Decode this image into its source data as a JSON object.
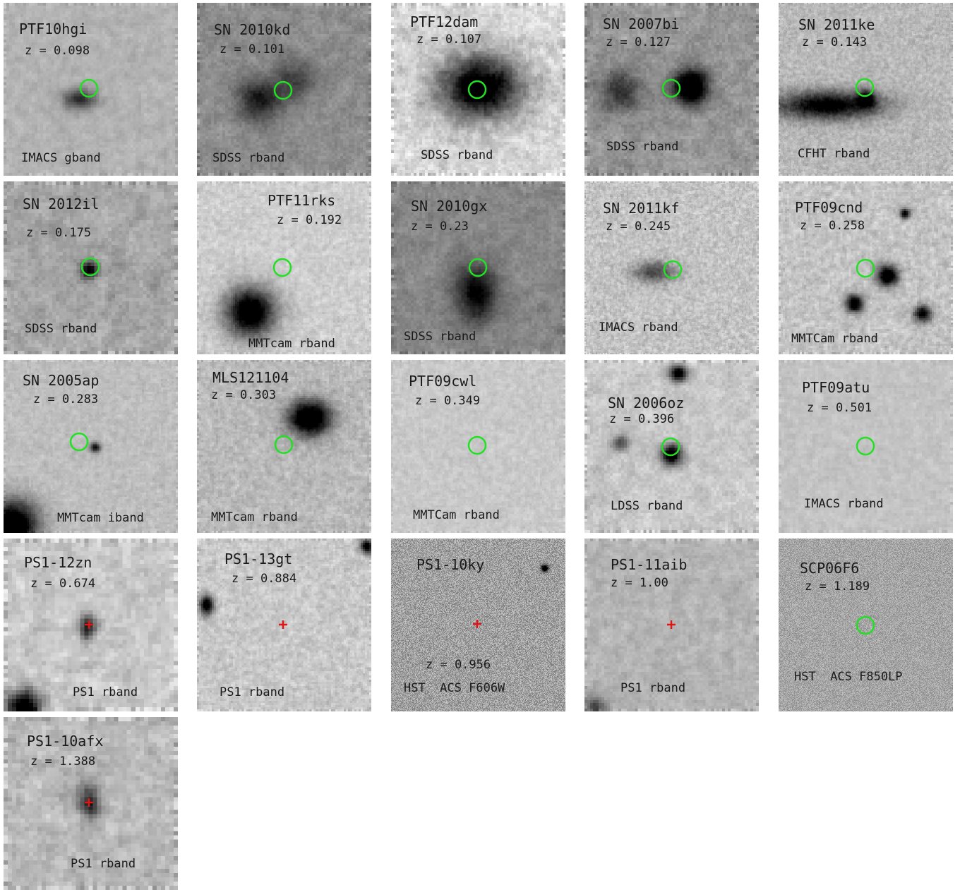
{
  "colors": {
    "circle": "#22e022",
    "cross": "#e01515"
  },
  "panels": [
    {
      "name": "PTF10hgi",
      "z": "z = 0.098",
      "band": "IMACS gband",
      "marker": "circle",
      "seed": 11,
      "bg": 178,
      "noise": 22,
      "blur": 2
    },
    {
      "name": "SN 2010kd",
      "z": "z = 0.101",
      "band": "SDSS rband",
      "marker": "circle",
      "seed": 12,
      "bg": 140,
      "noise": 38,
      "blur": 6
    },
    {
      "name": "PTF12dam",
      "z": "z = 0.107",
      "band": "SDSS rband",
      "marker": "circle",
      "seed": 13,
      "bg": 215,
      "noise": 50,
      "blur": 3
    },
    {
      "name": "SN 2007bi",
      "z": "z = 0.127",
      "band": "SDSS rband",
      "marker": "circle",
      "seed": 14,
      "bg": 150,
      "noise": 45,
      "blur": 6
    },
    {
      "name": "SN 2011ke",
      "z": "z = 0.143",
      "band": "CFHT rband",
      "marker": "circle",
      "seed": 15,
      "bg": 185,
      "noise": 30,
      "blur": 1
    },
    {
      "name": "SN 2012il",
      "z": "z = 0.175",
      "band": "SDSS rband",
      "marker": "circle",
      "seed": 16,
      "bg": 165,
      "noise": 40,
      "blur": 4
    },
    {
      "name": "PTF11rks",
      "z": "z = 0.192",
      "band": "MMTcam rband",
      "marker": "circle",
      "seed": 17,
      "bg": 205,
      "noise": 25,
      "blur": 1
    },
    {
      "name": "SN 2010gx",
      "z": "z = 0.23",
      "band": "SDSS rband",
      "marker": "circle",
      "seed": 18,
      "bg": 135,
      "noise": 35,
      "blur": 6
    },
    {
      "name": "SN 2011kf",
      "z": "z = 0.245",
      "band": "IMACS rband",
      "marker": "circle",
      "seed": 19,
      "bg": 195,
      "noise": 35,
      "blur": 1
    },
    {
      "name": "PTF09cnd",
      "z": "z = 0.258",
      "band": "MMTCam rband",
      "marker": "circle",
      "seed": 20,
      "bg": 195,
      "noise": 32,
      "blur": 1
    },
    {
      "name": "SN 2005ap",
      "z": "z = 0.283",
      "band": "MMTcam iband",
      "marker": "circle",
      "seed": 21,
      "bg": 190,
      "noise": 20,
      "blur": 1
    },
    {
      "name": "MLS121104",
      "z": "z = 0.303",
      "band": "MMTcam rband",
      "marker": "circle",
      "seed": 22,
      "bg": 185,
      "noise": 28,
      "blur": 1
    },
    {
      "name": "PTF09cwl",
      "z": "z = 0.349",
      "band": "MMTCam rband",
      "marker": "circle",
      "seed": 23,
      "bg": 200,
      "noise": 18,
      "blur": 1
    },
    {
      "name": "SN 2006oz",
      "z": "z = 0.396",
      "band": "LDSS rband",
      "marker": "circle",
      "seed": 24,
      "bg": 200,
      "noise": 40,
      "blur": 5
    },
    {
      "name": "PTF09atu",
      "z": "z = 0.501",
      "band": "IMACS rband",
      "marker": "circle",
      "seed": 25,
      "bg": 195,
      "noise": 16,
      "blur": 1
    },
    {
      "name": "PS1-12zn",
      "z": "z = 0.674",
      "band": "PS1 rband",
      "marker": "cross",
      "seed": 26,
      "bg": 200,
      "noise": 40,
      "blur": 2
    },
    {
      "name": "PS1-13gt",
      "z": "z = 0.884",
      "band": "PS1 rband",
      "marker": "cross",
      "seed": 27,
      "bg": 200,
      "noise": 30,
      "blur": 1
    },
    {
      "name": "PS1-10ky",
      "z": "z = 0.956",
      "band": "HST  ACS F606W",
      "marker": "cross",
      "seed": 28,
      "bg": 160,
      "noise": 40,
      "blur": 0
    },
    {
      "name": "PS1-11aib",
      "z": "z = 1.00",
      "band": "PS1 rband",
      "marker": "cross",
      "seed": 29,
      "bg": 180,
      "noise": 30,
      "blur": 3
    },
    {
      "name": "SCP06F6",
      "z": "z = 1.189",
      "band": "HST  ACS F850LP",
      "marker": "circle",
      "seed": 30,
      "bg": 165,
      "noise": 28,
      "blur": 0
    },
    {
      "name": "PS1-10afx",
      "z": "z = 1.388",
      "band": "PS1 rband",
      "marker": "cross",
      "seed": 31,
      "bg": 185,
      "noise": 40,
      "blur": 2
    }
  ]
}
